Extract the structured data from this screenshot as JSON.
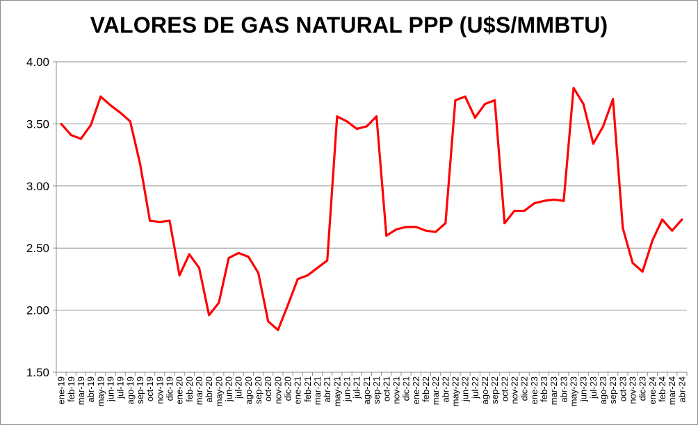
{
  "chart_data": {
    "type": "line",
    "title": "VALORES DE GAS NATURAL PPP (U$S/MMBTU)",
    "xlabel": "",
    "ylabel": "",
    "ylim": [
      1.5,
      4.0
    ],
    "yticks": [
      "1.50",
      "2.00",
      "2.50",
      "3.00",
      "3.50",
      "4.00"
    ],
    "grid": "horizontal",
    "legend": "none",
    "line_color": "#ff0000",
    "categories": [
      "ene-19",
      "feb-19",
      "mar-19",
      "abr-19",
      "may-19",
      "jun-19",
      "jul-19",
      "ago-19",
      "sep-19",
      "oct-19",
      "nov-19",
      "dic-19",
      "ene-20",
      "feb-20",
      "mar-20",
      "abr-20",
      "may-20",
      "jun-20",
      "jul-20",
      "ago-20",
      "sep-20",
      "oct-20",
      "nov-20",
      "dic-20",
      "ene-21",
      "feb-21",
      "mar-21",
      "abr-21",
      "may-21",
      "jun-21",
      "jul-21",
      "ago-21",
      "sep-21",
      "oct-21",
      "nov-21",
      "dic-21",
      "ene-22",
      "feb-22",
      "mar-22",
      "abr-22",
      "may-22",
      "jun-22",
      "jul-22",
      "ago-22",
      "sep-22",
      "oct-22",
      "nov-22",
      "dic-22",
      "ene-23",
      "feb-23",
      "mar-23",
      "abr-23",
      "may-23",
      "jun-23",
      "jul-23",
      "ago-23",
      "sep-23",
      "oct-23",
      "nov-23",
      "dic-23",
      "ene-24",
      "feb-24",
      "mar-24",
      "abr-24"
    ],
    "values": [
      3.5,
      3.41,
      3.38,
      3.49,
      3.72,
      3.65,
      3.59,
      3.52,
      3.18,
      2.72,
      2.71,
      2.72,
      2.28,
      2.45,
      2.34,
      1.96,
      2.06,
      2.42,
      2.46,
      2.43,
      2.3,
      1.91,
      1.84,
      2.04,
      2.25,
      2.28,
      2.34,
      2.4,
      3.56,
      3.52,
      3.46,
      3.48,
      3.56,
      2.6,
      2.65,
      2.67,
      2.67,
      2.64,
      2.63,
      2.7,
      3.69,
      3.72,
      3.55,
      3.66,
      3.69,
      2.7,
      2.8,
      2.8,
      2.86,
      2.88,
      2.89,
      2.88,
      3.79,
      3.66,
      3.34,
      3.48,
      3.7,
      2.66,
      2.38,
      2.31,
      2.56,
      2.73,
      2.64,
      2.73
    ]
  }
}
